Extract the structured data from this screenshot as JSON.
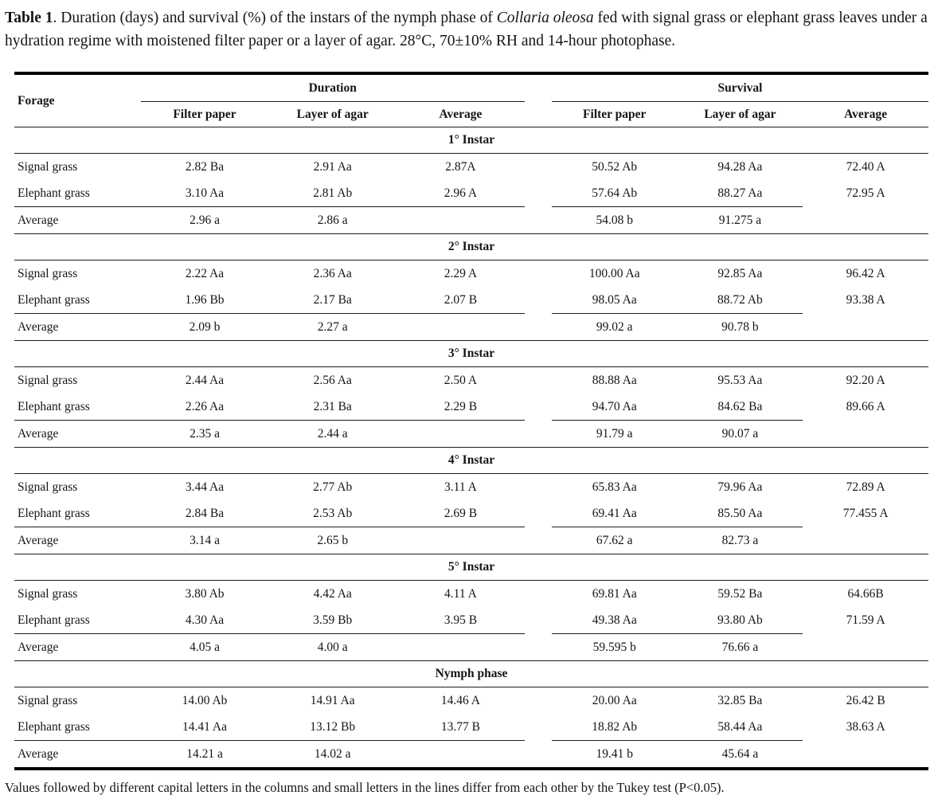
{
  "caption": {
    "label": "Table 1",
    "after_label": ". Duration (days) and survival (%) of the instars of the nymph phase of ",
    "species": "Collaria oleosa",
    "tail": " fed with signal grass or elephant grass leaves under a hydration regime with moistened filter paper or a layer of agar. 28°C, 70±10% RH and 14-hour photophase."
  },
  "table": {
    "header": {
      "forage": "Forage",
      "duration": "Duration",
      "survival": "Survival",
      "subcolumns": [
        "Filter paper",
        "Layer of agar",
        "Average"
      ]
    },
    "row_labels": {
      "signal": "Signal grass",
      "elephant": "Elephant grass",
      "average": "Average"
    },
    "sections": [
      {
        "title": "1° Instar",
        "rows": [
          {
            "label": "Signal grass",
            "values": [
              "2.82 Ba",
              "2.91 Aa",
              "2.87A",
              "50.52 Ab",
              "94.28 Aa",
              "72.40 A"
            ]
          },
          {
            "label": "Elephant grass",
            "values": [
              "3.10 Aa",
              "2.81 Ab",
              "2.96 A",
              "57.64 Ab",
              "88.27 Aa",
              "72.95 A"
            ]
          }
        ],
        "average": {
          "label": "Average",
          "values": [
            "2.96 a",
            "2.86 a",
            "",
            "54.08 b",
            "91.275 a",
            ""
          ]
        }
      },
      {
        "title": "2° Instar",
        "rows": [
          {
            "label": "Signal grass",
            "values": [
              "2.22 Aa",
              "2.36 Aa",
              "2.29 A",
              "100.00 Aa",
              "92.85 Aa",
              "96.42 A"
            ]
          },
          {
            "label": "Elephant grass",
            "values": [
              "1.96 Bb",
              "2.17 Ba",
              "2.07 B",
              "98.05 Aa",
              "88.72 Ab",
              "93.38 A"
            ]
          }
        ],
        "average": {
          "label": "Average",
          "values": [
            "2.09 b",
            "2.27 a",
            "",
            "99.02 a",
            "90.78 b",
            ""
          ]
        }
      },
      {
        "title": "3° Instar",
        "rows": [
          {
            "label": "Signal grass",
            "values": [
              "2.44 Aa",
              "2.56 Aa",
              "2.50 A",
              "88.88 Aa",
              "95.53 Aa",
              "92.20 A"
            ]
          },
          {
            "label": "Elephant grass",
            "values": [
              "2.26 Aa",
              "2.31 Ba",
              "2.29 B",
              "94.70 Aa",
              "84.62 Ba",
              "89.66 A"
            ]
          }
        ],
        "average": {
          "label": "Average",
          "values": [
            "2.35 a",
            "2.44 a",
            "",
            "91.79 a",
            "90.07 a",
            ""
          ]
        }
      },
      {
        "title": "4° Instar",
        "rows": [
          {
            "label": "Signal grass",
            "values": [
              "3.44 Aa",
              "2.77 Ab",
              "3.11 A",
              "65.83 Aa",
              "79.96 Aa",
              "72.89 A"
            ]
          },
          {
            "label": "Elephant grass",
            "values": [
              "2.84 Ba",
              "2.53 Ab",
              "2.69 B",
              "69.41 Aa",
              "85.50 Aa",
              "77.455 A"
            ]
          }
        ],
        "average": {
          "label": "Average",
          "values": [
            "3.14 a",
            "2.65 b",
            "",
            "67.62 a",
            "82.73 a",
            ""
          ]
        }
      },
      {
        "title": "5° Instar",
        "rows": [
          {
            "label": "Signal grass",
            "values": [
              "3.80 Ab",
              "4.42 Aa",
              "4.11 A",
              "69.81 Aa",
              "59.52 Ba",
              "64.66B"
            ]
          },
          {
            "label": "Elephant grass",
            "values": [
              "4.30 Aa",
              "3.59 Bb",
              "3.95 B",
              "49.38 Aa",
              "93.80 Ab",
              "71.59 A"
            ]
          }
        ],
        "average": {
          "label": "Average",
          "values": [
            "4.05 a",
            "4.00 a",
            "",
            "59.595 b",
            "76.66 a",
            ""
          ]
        }
      },
      {
        "title": "Nymph phase",
        "rows": [
          {
            "label": "Signal grass",
            "values": [
              "14.00 Ab",
              "14.91 Aa",
              "14.46 A",
              "20.00 Aa",
              "32.85 Ba",
              "26.42 B"
            ]
          },
          {
            "label": "Elephant grass",
            "values": [
              "14.41 Aa",
              "13.12 Bb",
              "13.77 B",
              "18.82 Ab",
              "58.44 Aa",
              "38.63 A"
            ]
          }
        ],
        "average": {
          "label": "Average",
          "values": [
            "14.21 a",
            "14.02 a",
            "",
            "19.41 b",
            "45.64 a",
            ""
          ]
        }
      }
    ]
  },
  "footnote": "Values followed by different capital letters in the columns and small letters in the lines differ from each other by the Tukey test (P<0.05)."
}
